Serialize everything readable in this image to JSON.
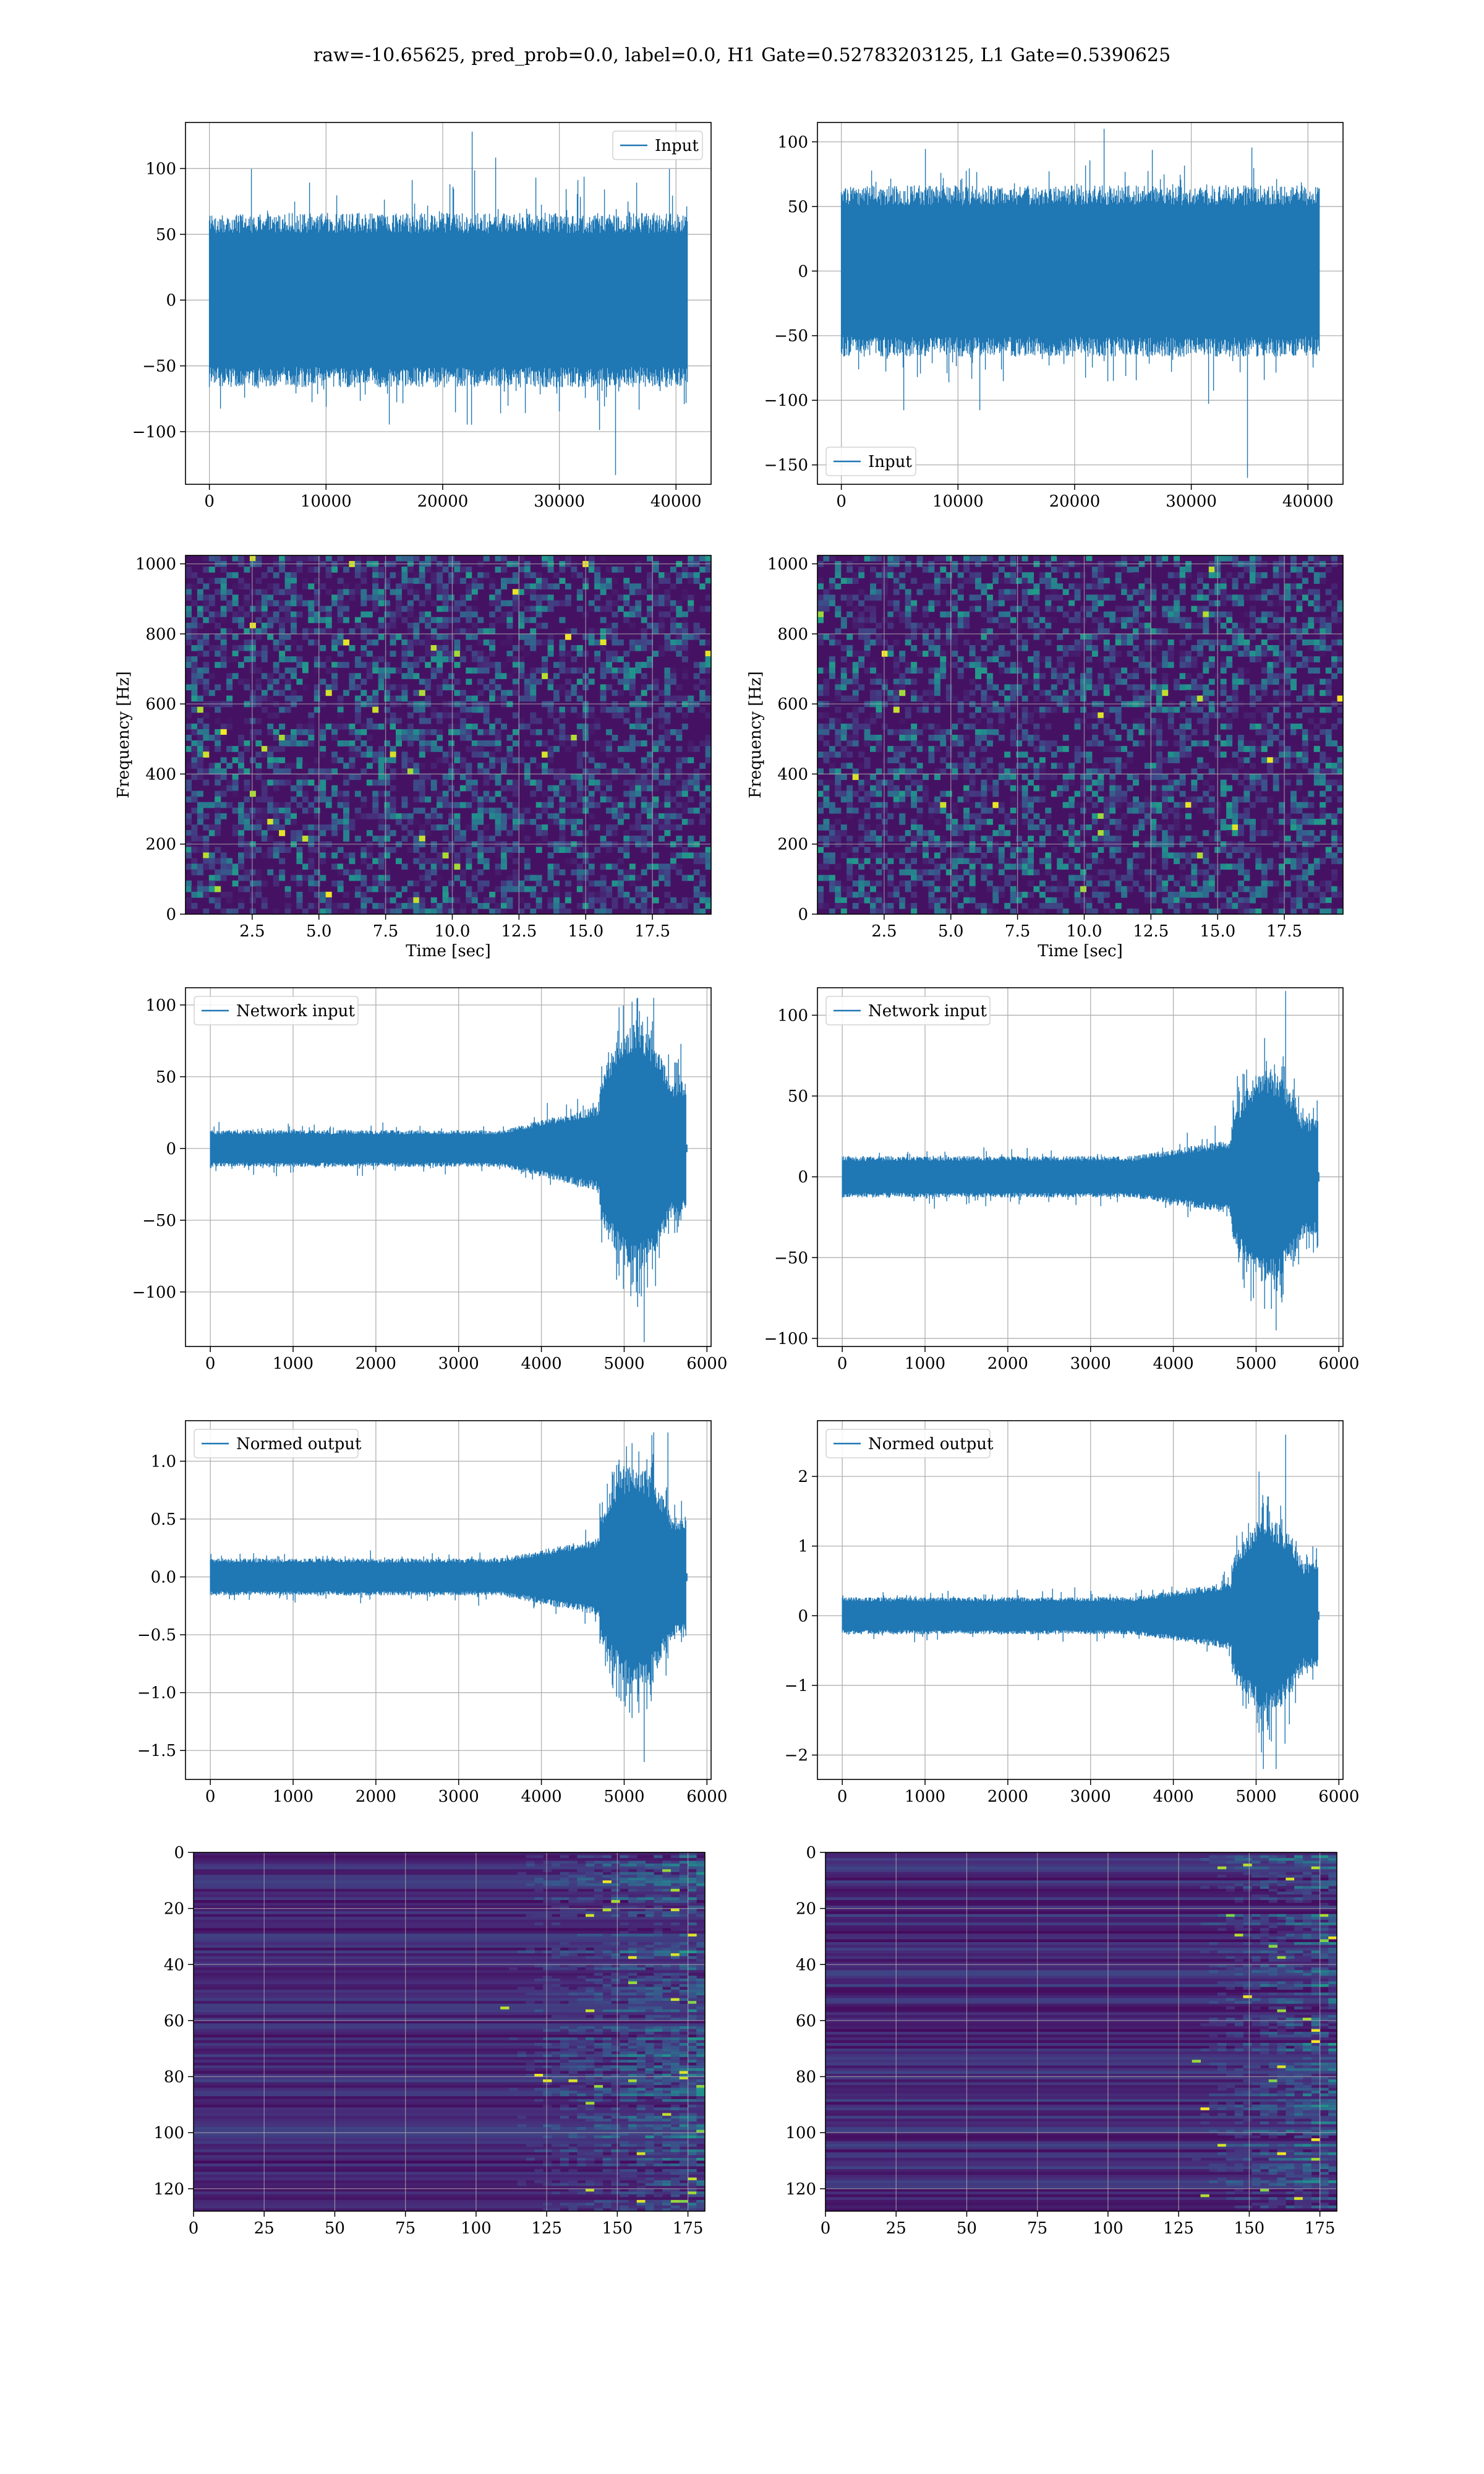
{
  "figure": {
    "suptitle": "raw=-10.65625, pred_prob=0.0, label=0.0, H1 Gate=0.52783203125, L1 Gate=0.5390625"
  },
  "colors": {
    "line": "#1f77b4",
    "grid": "#b0b0b0",
    "viridis_low": "#440154",
    "viridis_mid": "#21918c",
    "viridis_high": "#fde725"
  },
  "chart_data": [
    {
      "id": "row1-left",
      "type": "line",
      "series": [
        {
          "name": "Input"
        }
      ],
      "legend": "top-right",
      "x_range": [
        0,
        40960
      ],
      "xlim": [
        -2048,
        43008
      ],
      "ylim": [
        -140,
        135
      ],
      "x_ticks": [
        0,
        10000,
        20000,
        30000,
        40000
      ],
      "x_tick_labels": [
        "0",
        "10000",
        "20000",
        "30000",
        "40000"
      ],
      "y_ticks": [
        -100,
        -50,
        0,
        50,
        100
      ],
      "y_tick_labels": [
        "−100",
        "−50",
        "0",
        "50",
        "100"
      ],
      "envelope": {
        "body": 62,
        "spike_max": 128,
        "spike_min": -133
      },
      "grid": true,
      "xlabel": "",
      "ylabel": ""
    },
    {
      "id": "row1-right",
      "type": "line",
      "series": [
        {
          "name": "Input"
        }
      ],
      "legend": "bottom-left",
      "x_range": [
        0,
        40960
      ],
      "xlim": [
        -2048,
        43008
      ],
      "ylim": [
        -165,
        115
      ],
      "x_ticks": [
        0,
        10000,
        20000,
        30000,
        40000
      ],
      "x_tick_labels": [
        "0",
        "10000",
        "20000",
        "30000",
        "40000"
      ],
      "y_ticks": [
        -150,
        -100,
        -50,
        0,
        50,
        100
      ],
      "y_tick_labels": [
        "−150",
        "−100",
        "−50",
        "0",
        "50",
        "100"
      ],
      "envelope": {
        "body": 62,
        "spike_max": 110,
        "spike_min": -160
      },
      "grid": true,
      "xlabel": "",
      "ylabel": ""
    },
    {
      "id": "row2-left",
      "type": "heatmap",
      "xlim": [
        0,
        19.7
      ],
      "ylim": [
        0,
        1024
      ],
      "x_ticks": [
        2.5,
        5,
        7.5,
        10,
        12.5,
        15,
        17.5
      ],
      "x_tick_labels": [
        "2.5",
        "5.0",
        "7.5",
        "10.0",
        "12.5",
        "15.0",
        "17.5"
      ],
      "y_ticks": [
        0,
        200,
        400,
        600,
        800,
        1000
      ],
      "y_tick_labels": [
        "0",
        "200",
        "400",
        "600",
        "800",
        "1000"
      ],
      "xlabel": "Time [sec]",
      "ylabel": "Frequency [Hz]",
      "grid": true
    },
    {
      "id": "row2-right",
      "type": "heatmap",
      "xlim": [
        0,
        19.7
      ],
      "ylim": [
        0,
        1024
      ],
      "x_ticks": [
        2.5,
        5,
        7.5,
        10,
        12.5,
        15,
        17.5
      ],
      "x_tick_labels": [
        "2.5",
        "5.0",
        "7.5",
        "10.0",
        "12.5",
        "15.0",
        "17.5"
      ],
      "y_ticks": [
        0,
        200,
        400,
        600,
        800,
        1000
      ],
      "y_tick_labels": [
        "0",
        "200",
        "400",
        "600",
        "800",
        "1000"
      ],
      "xlabel": "Time [sec]",
      "ylabel": "Frequency [Hz]",
      "grid": true
    },
    {
      "id": "row3-left",
      "type": "line",
      "series": [
        {
          "name": "Network input"
        }
      ],
      "legend": "top-left",
      "x_range": [
        0,
        5760
      ],
      "xlim": [
        -300,
        6050
      ],
      "ylim": [
        -138,
        112
      ],
      "x_ticks": [
        0,
        1000,
        2000,
        3000,
        4000,
        5000,
        6000
      ],
      "x_tick_labels": [
        "0",
        "1000",
        "2000",
        "3000",
        "4000",
        "5000",
        "6000"
      ],
      "y_ticks": [
        -100,
        -50,
        0,
        50,
        100
      ],
      "y_tick_labels": [
        "−100",
        "−50",
        "0",
        "50",
        "100"
      ],
      "envelope": {
        "base": 12,
        "peak": 80,
        "spike_max": 105,
        "spike_min": -135,
        "rise_start": 3500,
        "burst_start": 4700,
        "burst_end": 5750
      },
      "grid": true,
      "xlabel": "",
      "ylabel": ""
    },
    {
      "id": "row3-right",
      "type": "line",
      "series": [
        {
          "name": "Network input"
        }
      ],
      "legend": "top-left",
      "x_range": [
        0,
        5760
      ],
      "xlim": [
        -300,
        6050
      ],
      "ylim": [
        -105,
        117
      ],
      "x_ticks": [
        0,
        1000,
        2000,
        3000,
        4000,
        5000,
        6000
      ],
      "x_tick_labels": [
        "0",
        "1000",
        "2000",
        "3000",
        "4000",
        "5000",
        "6000"
      ],
      "y_ticks": [
        -100,
        -50,
        0,
        50,
        100
      ],
      "y_tick_labels": [
        "−100",
        "−50",
        "0",
        "50",
        "100"
      ],
      "envelope": {
        "base": 12,
        "peak": 62,
        "spike_max": 115,
        "spike_min": -95,
        "rise_start": 3500,
        "burst_start": 4700,
        "burst_end": 5750
      },
      "grid": true,
      "xlabel": "",
      "ylabel": ""
    },
    {
      "id": "row4-left",
      "type": "line",
      "series": [
        {
          "name": "Normed output"
        }
      ],
      "legend": "top-left",
      "x_range": [
        0,
        5760
      ],
      "xlim": [
        -300,
        6050
      ],
      "ylim": [
        -1.75,
        1.35
      ],
      "x_ticks": [
        0,
        1000,
        2000,
        3000,
        4000,
        5000,
        6000
      ],
      "x_tick_labels": [
        "0",
        "1000",
        "2000",
        "3000",
        "4000",
        "5000",
        "6000"
      ],
      "y_ticks": [
        -1.5,
        -1.0,
        -0.5,
        0.0,
        0.5,
        1.0
      ],
      "y_tick_labels": [
        "−1.5",
        "−1.0",
        "−0.5",
        "0.0",
        "0.5",
        "1.0"
      ],
      "envelope": {
        "base": 0.15,
        "peak": 0.9,
        "spike_max": 1.25,
        "spike_min": -1.6,
        "rise_start": 3500,
        "burst_start": 4700,
        "burst_end": 5750
      },
      "grid": true,
      "xlabel": "",
      "ylabel": ""
    },
    {
      "id": "row4-right",
      "type": "line",
      "series": [
        {
          "name": "Normed output"
        }
      ],
      "legend": "top-left",
      "x_range": [
        0,
        5760
      ],
      "xlim": [
        -300,
        6050
      ],
      "ylim": [
        -2.35,
        2.8
      ],
      "x_ticks": [
        0,
        1000,
        2000,
        3000,
        4000,
        5000,
        6000
      ],
      "x_tick_labels": [
        "0",
        "1000",
        "2000",
        "3000",
        "4000",
        "5000",
        "6000"
      ],
      "y_ticks": [
        -2,
        -1,
        0,
        1,
        2
      ],
      "y_tick_labels": [
        "−2",
        "−1",
        "0",
        "1",
        "2"
      ],
      "envelope": {
        "base": 0.25,
        "peak": 1.3,
        "spike_max": 2.6,
        "spike_min": -2.2,
        "rise_start": 3500,
        "burst_start": 4700,
        "burst_end": 5750
      },
      "grid": true,
      "xlabel": "",
      "ylabel": ""
    },
    {
      "id": "row5-left",
      "type": "heatmap",
      "xlim": [
        0,
        181
      ],
      "ylim": [
        128,
        0
      ],
      "x_ticks": [
        0,
        25,
        50,
        75,
        100,
        125,
        150,
        175
      ],
      "x_tick_labels": [
        "0",
        "25",
        "50",
        "75",
        "100",
        "125",
        "150",
        "175"
      ],
      "y_ticks": [
        0,
        20,
        40,
        60,
        80,
        100,
        120
      ],
      "y_tick_labels": [
        "0",
        "20",
        "40",
        "60",
        "80",
        "100",
        "120"
      ],
      "activity_onset": 100,
      "grid": true,
      "xlabel": "",
      "ylabel": ""
    },
    {
      "id": "row5-right",
      "type": "heatmap",
      "xlim": [
        0,
        181
      ],
      "ylim": [
        128,
        0
      ],
      "x_ticks": [
        0,
        25,
        50,
        75,
        100,
        125,
        150,
        175
      ],
      "x_tick_labels": [
        "0",
        "25",
        "50",
        "75",
        "100",
        "125",
        "150",
        "175"
      ],
      "y_ticks": [
        0,
        20,
        40,
        60,
        80,
        100,
        120
      ],
      "y_tick_labels": [
        "0",
        "20",
        "40",
        "60",
        "80",
        "100",
        "120"
      ],
      "activity_onset": 122,
      "grid": true,
      "xlabel": "",
      "ylabel": ""
    }
  ]
}
